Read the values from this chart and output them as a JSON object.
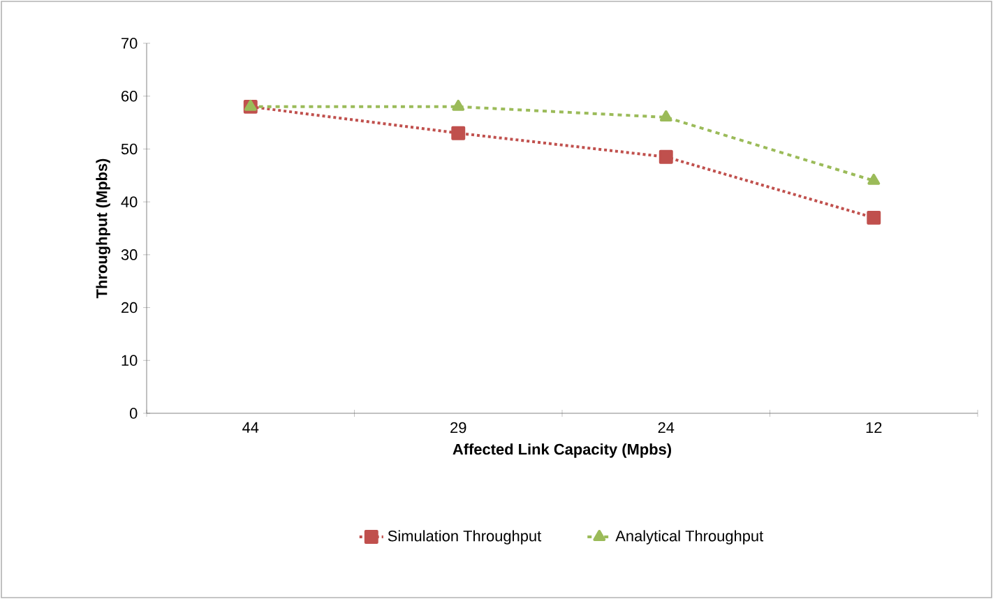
{
  "chart_data": {
    "type": "line",
    "xlabel": "Affected Link Capacity (Mpbs)",
    "ylabel": "Throughput (Mpbs)",
    "categories": [
      "44",
      "29",
      "24",
      "12"
    ],
    "series": [
      {
        "name": "Simulation Throughput",
        "color": "#c0504d",
        "values": [
          58,
          53,
          48.5,
          37
        ],
        "marker": "square",
        "line_style": "dotted"
      },
      {
        "name": "Analytical Throughput",
        "color": "#9bbb59",
        "values": [
          58,
          58,
          56,
          44
        ],
        "marker": "triangle",
        "line_style": "dashed"
      }
    ],
    "ylim": [
      0,
      70
    ],
    "yticks": [
      0,
      10,
      20,
      30,
      40,
      50,
      60,
      70
    ],
    "grid": false,
    "legend": "bottom"
  }
}
